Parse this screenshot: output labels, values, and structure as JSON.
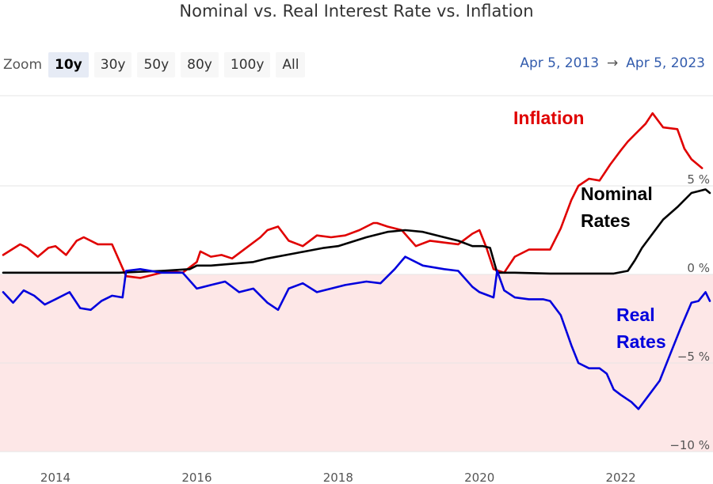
{
  "title": "Nominal vs. Real Interest Rate vs. Inflation",
  "zoom": {
    "label": "Zoom",
    "buttons": [
      "10y",
      "30y",
      "50y",
      "80y",
      "100y",
      "All"
    ],
    "active": "10y"
  },
  "range": {
    "from": "Apr 5, 2013",
    "arrow": "→",
    "to": "Apr 5, 2023"
  },
  "colors": {
    "inflation": "#e00000",
    "nominal": "#000000",
    "real": "#0000dd",
    "negative_fill": "#fde7e7",
    "grid": "#e6e6e6"
  },
  "chart_data": {
    "type": "line",
    "title": "Nominal vs. Real Interest Rate vs. Inflation",
    "xlabel": "",
    "ylabel": "",
    "xlim": [
      2013.26,
      2023.26
    ],
    "ylim": [
      -10,
      10
    ],
    "x_ticks": [
      2014,
      2016,
      2018,
      2020,
      2022
    ],
    "x_tick_labels": [
      "2014",
      "2016",
      "2018",
      "2020",
      "2022"
    ],
    "y_ticks": [
      5,
      0,
      -5,
      -10
    ],
    "y_tick_labels": [
      "5 %",
      "0 %",
      "−5 %",
      "−10 %"
    ],
    "annotations": [
      {
        "text": "Inflation",
        "color": "#e00000"
      },
      {
        "text": "Nominal",
        "color": "#000000"
      },
      {
        "text": "Rates",
        "color": "#000000"
      },
      {
        "text": "Real",
        "color": "#0000dd"
      },
      {
        "text": "Rates",
        "color": "#0000dd"
      }
    ],
    "series": [
      {
        "name": "Inflation",
        "color": "#e00000",
        "x": [
          2013.26,
          2013.5,
          2013.6,
          2013.75,
          2013.9,
          2014.0,
          2014.15,
          2014.3,
          2014.4,
          2014.6,
          2014.8,
          2015.0,
          2015.2,
          2015.4,
          2015.6,
          2015.8,
          2016.0,
          2016.05,
          2016.2,
          2016.35,
          2016.5,
          2016.7,
          2016.9,
          2017.0,
          2017.15,
          2017.3,
          2017.5,
          2017.7,
          2017.9,
          2018.1,
          2018.3,
          2018.5,
          2018.55,
          2018.7,
          2018.9,
          2019.1,
          2019.3,
          2019.5,
          2019.7,
          2019.9,
          2020.0,
          2020.1,
          2020.2,
          2020.35,
          2020.5,
          2020.7,
          2020.9,
          2021.0,
          2021.15,
          2021.3,
          2021.4,
          2021.55,
          2021.7,
          2021.85,
          2022.0,
          2022.1,
          2022.2,
          2022.35,
          2022.45,
          2022.6,
          2022.8,
          2022.9,
          2023.0,
          2023.15
        ],
        "values": [
          1.1,
          1.7,
          1.5,
          1.0,
          1.5,
          1.6,
          1.1,
          1.9,
          2.1,
          1.7,
          1.7,
          -0.1,
          -0.2,
          0.0,
          0.2,
          0.1,
          0.7,
          1.3,
          1.0,
          1.1,
          0.9,
          1.5,
          2.1,
          2.5,
          2.7,
          1.9,
          1.6,
          2.2,
          2.1,
          2.2,
          2.5,
          2.9,
          2.9,
          2.7,
          2.5,
          1.6,
          1.9,
          1.8,
          1.7,
          2.3,
          2.5,
          1.5,
          0.3,
          0.1,
          1.0,
          1.4,
          1.4,
          1.4,
          2.6,
          4.2,
          5.0,
          5.4,
          5.3,
          6.2,
          7.0,
          7.5,
          7.9,
          8.5,
          9.1,
          8.3,
          8.2,
          7.1,
          6.5,
          6.0
        ]
      },
      {
        "name": "Nominal Rates",
        "color": "#000000",
        "x": [
          2013.26,
          2014.0,
          2014.9,
          2015.5,
          2015.9,
          2016.0,
          2016.2,
          2016.5,
          2016.8,
          2017.0,
          2017.4,
          2017.8,
          2018.0,
          2018.4,
          2018.7,
          2018.95,
          2019.2,
          2019.5,
          2019.7,
          2019.9,
          2020.05,
          2020.15,
          2020.25,
          2020.5,
          2021.0,
          2021.5,
          2021.9,
          2022.1,
          2022.2,
          2022.3,
          2022.45,
          2022.6,
          2022.8,
          2023.0,
          2023.1,
          2023.2,
          2023.26
        ],
        "values": [
          0.1,
          0.1,
          0.1,
          0.2,
          0.3,
          0.5,
          0.5,
          0.6,
          0.7,
          0.9,
          1.2,
          1.5,
          1.6,
          2.1,
          2.4,
          2.5,
          2.4,
          2.1,
          1.9,
          1.6,
          1.6,
          1.5,
          0.1,
          0.1,
          0.05,
          0.05,
          0.05,
          0.2,
          0.8,
          1.5,
          2.3,
          3.1,
          3.8,
          4.6,
          4.7,
          4.8,
          4.6
        ]
      },
      {
        "name": "Real Rates",
        "color": "#0000dd",
        "x": [
          2013.26,
          2013.4,
          2013.55,
          2013.7,
          2013.85,
          2014.0,
          2014.2,
          2014.35,
          2014.5,
          2014.65,
          2014.8,
          2014.95,
          2015.0,
          2015.2,
          2015.5,
          2015.8,
          2016.0,
          2016.2,
          2016.4,
          2016.6,
          2016.8,
          2017.0,
          2017.15,
          2017.3,
          2017.5,
          2017.7,
          2017.9,
          2018.1,
          2018.4,
          2018.6,
          2018.8,
          2018.95,
          2019.2,
          2019.5,
          2019.7,
          2019.9,
          2020.0,
          2020.2,
          2020.25,
          2020.35,
          2020.5,
          2020.7,
          2020.9,
          2021.0,
          2021.15,
          2021.3,
          2021.4,
          2021.55,
          2021.7,
          2021.8,
          2021.9,
          2022.0,
          2022.15,
          2022.25,
          2022.4,
          2022.55,
          2022.7,
          2022.85,
          2023.0,
          2023.1,
          2023.2,
          2023.26
        ],
        "values": [
          -1.0,
          -1.6,
          -0.9,
          -1.2,
          -1.7,
          -1.4,
          -1.0,
          -1.9,
          -2.0,
          -1.5,
          -1.2,
          -1.3,
          0.2,
          0.3,
          0.1,
          0.1,
          -0.8,
          -0.6,
          -0.4,
          -1.0,
          -0.8,
          -1.6,
          -2.0,
          -0.8,
          -0.5,
          -1.0,
          -0.8,
          -0.6,
          -0.4,
          -0.5,
          0.3,
          1.0,
          0.5,
          0.3,
          0.2,
          -0.7,
          -1.0,
          -1.3,
          0.2,
          -0.9,
          -1.3,
          -1.4,
          -1.4,
          -1.5,
          -2.3,
          -4.0,
          -5.0,
          -5.3,
          -5.3,
          -5.6,
          -6.5,
          -6.8,
          -7.2,
          -7.6,
          -6.8,
          -6.0,
          -4.5,
          -3.0,
          -1.6,
          -1.5,
          -1.0,
          -1.5
        ]
      }
    ]
  }
}
